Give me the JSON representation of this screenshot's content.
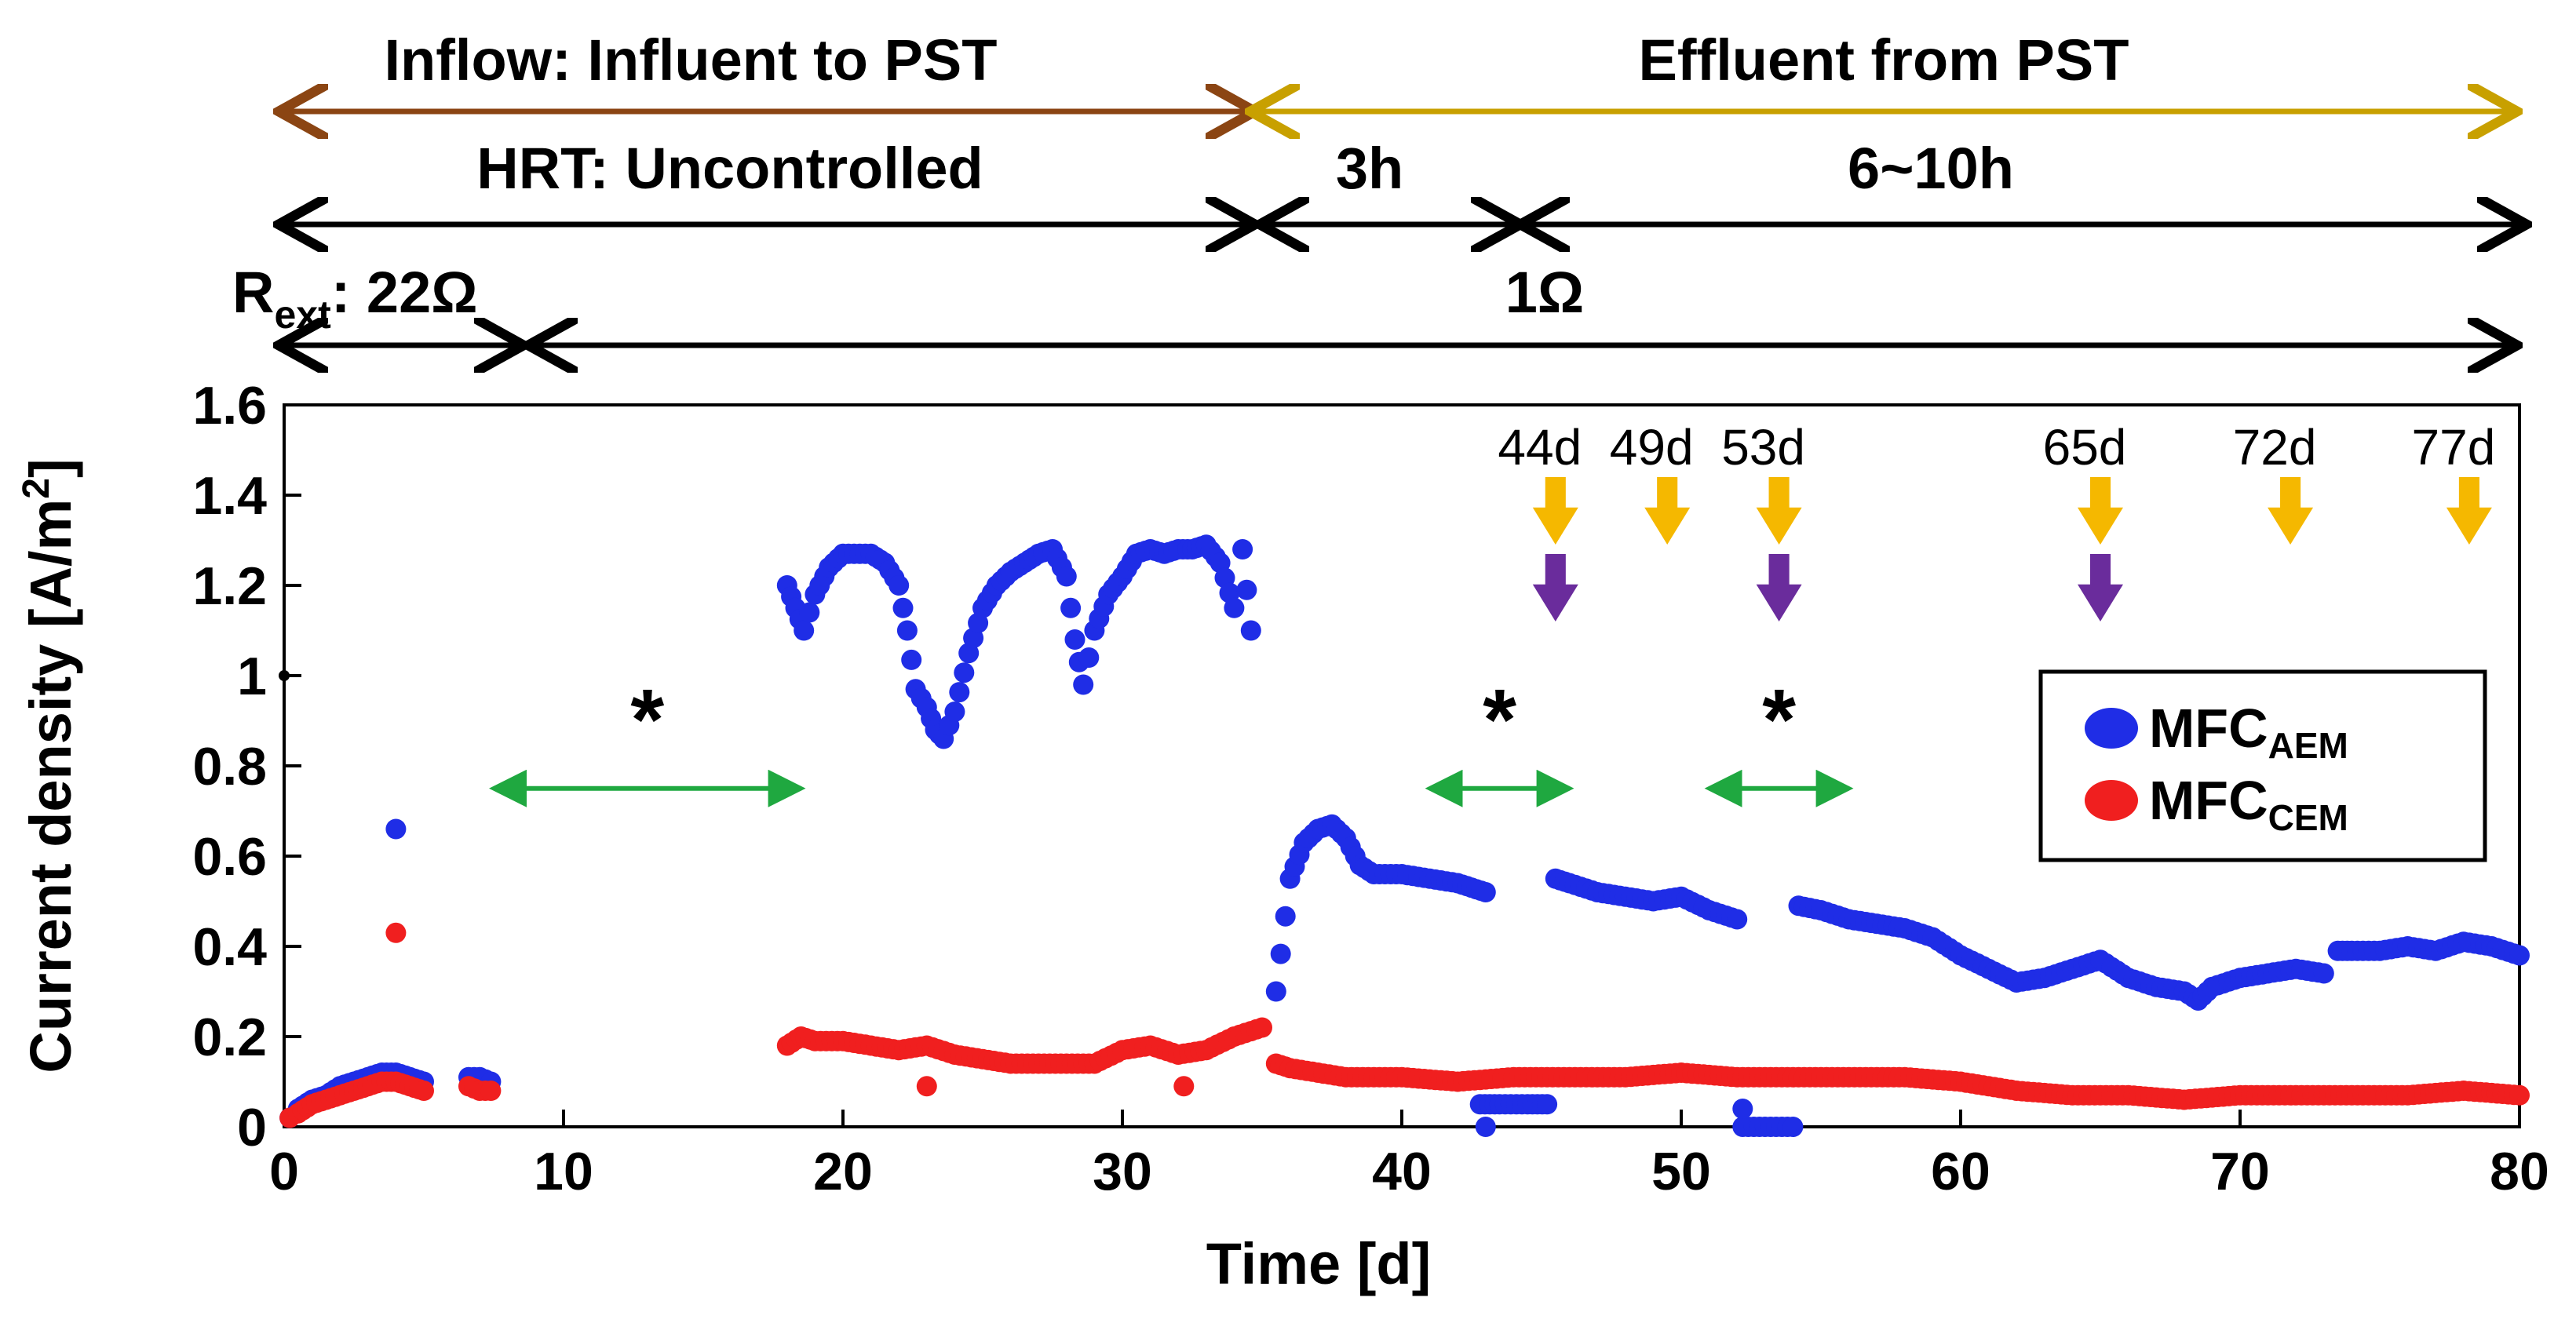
{
  "chart_data": {
    "type": "scatter",
    "title": "",
    "xlabel": "Time [d]",
    "ylabel_main": "Current density [A/m",
    "ylabel_sup": "2",
    "ylabel_end": "]",
    "xlim": [
      0,
      80
    ],
    "ylim": [
      0,
      1.6
    ],
    "xticks": [
      0,
      10,
      20,
      30,
      40,
      50,
      60,
      70,
      80
    ],
    "yticks": [
      0,
      0.2,
      0.4,
      0.6,
      0.8,
      1,
      1.2,
      1.4,
      1.6
    ],
    "ytick_labels": [
      "0",
      "0.2",
      "0.4",
      "0.6",
      "0.8",
      "1",
      "1.2",
      "1.4",
      "1.6"
    ],
    "grid": false,
    "legend_position": "right",
    "series": [
      {
        "name": "MFC",
        "subscript": "AEM",
        "color": "#1f2de6",
        "segments": [
          [
            [
              0.2,
              0.02
            ],
            [
              0.5,
              0.04
            ],
            [
              1.0,
              0.06
            ],
            [
              1.5,
              0.07
            ],
            [
              2.0,
              0.09
            ],
            [
              2.5,
              0.1
            ],
            [
              3.0,
              0.11
            ],
            [
              3.5,
              0.12
            ],
            [
              4.0,
              0.12
            ],
            [
              4.5,
              0.11
            ],
            [
              5.0,
              0.1
            ]
          ],
          [
            [
              4.0,
              0.66
            ]
          ],
          [
            [
              6.6,
              0.11
            ],
            [
              7.0,
              0.11
            ],
            [
              7.4,
              0.1
            ]
          ],
          [
            [
              18.0,
              1.2
            ],
            [
              18.3,
              1.15
            ],
            [
              18.6,
              1.1
            ],
            [
              19.0,
              1.18
            ],
            [
              19.5,
              1.24
            ],
            [
              20.0,
              1.27
            ],
            [
              21.0,
              1.27
            ],
            [
              21.5,
              1.25
            ],
            [
              22.0,
              1.2
            ],
            [
              22.3,
              1.1
            ],
            [
              22.6,
              0.97
            ],
            [
              23.0,
              0.93
            ],
            [
              23.3,
              0.88
            ],
            [
              23.6,
              0.86
            ],
            [
              24.0,
              0.92
            ],
            [
              24.5,
              1.05
            ],
            [
              25.0,
              1.15
            ],
            [
              25.5,
              1.2
            ],
            [
              26.0,
              1.23
            ],
            [
              26.5,
              1.25
            ],
            [
              27.0,
              1.27
            ],
            [
              27.5,
              1.28
            ],
            [
              28.0,
              1.22
            ],
            [
              28.3,
              1.08
            ],
            [
              28.6,
              0.98
            ],
            [
              29.0,
              1.1
            ],
            [
              29.5,
              1.18
            ],
            [
              30.0,
              1.22
            ],
            [
              30.5,
              1.27
            ],
            [
              31.0,
              1.28
            ],
            [
              31.5,
              1.27
            ],
            [
              32.0,
              1.28
            ],
            [
              32.5,
              1.28
            ],
            [
              33.0,
              1.29
            ],
            [
              33.5,
              1.25
            ],
            [
              34.0,
              1.15
            ],
            [
              34.3,
              1.28
            ],
            [
              34.6,
              1.1
            ]
          ],
          [
            [
              35.5,
              0.3
            ],
            [
              36.0,
              0.55
            ],
            [
              36.5,
              0.63
            ],
            [
              37.0,
              0.66
            ],
            [
              37.5,
              0.67
            ],
            [
              38.0,
              0.64
            ],
            [
              38.5,
              0.58
            ],
            [
              39.0,
              0.56
            ],
            [
              40.0,
              0.56
            ],
            [
              41.0,
              0.55
            ],
            [
              42.0,
              0.54
            ],
            [
              42.5,
              0.53
            ],
            [
              43.0,
              0.52
            ]
          ],
          [
            [
              42.8,
              0.05
            ],
            [
              43.5,
              0.05
            ],
            [
              44.5,
              0.05
            ],
            [
              45.2,
              0.05
            ]
          ],
          [
            [
              43.0,
              0.0
            ]
          ],
          [
            [
              45.5,
              0.55
            ],
            [
              46.0,
              0.54
            ],
            [
              47.0,
              0.52
            ],
            [
              48.0,
              0.51
            ],
            [
              49.0,
              0.5
            ],
            [
              50.0,
              0.51
            ],
            [
              51.0,
              0.48
            ],
            [
              52.0,
              0.46
            ]
          ],
          [
            [
              52.2,
              0.04
            ],
            [
              52.2,
              0.0
            ],
            [
              53.0,
              0.0
            ],
            [
              54.0,
              0.0
            ]
          ],
          [
            [
              54.2,
              0.49
            ],
            [
              55.0,
              0.48
            ],
            [
              56.0,
              0.46
            ],
            [
              57.0,
              0.45
            ],
            [
              58.0,
              0.44
            ],
            [
              59.0,
              0.42
            ],
            [
              60.0,
              0.38
            ],
            [
              61.0,
              0.35
            ],
            [
              62.0,
              0.32
            ],
            [
              63.0,
              0.33
            ],
            [
              64.0,
              0.35
            ],
            [
              65.0,
              0.37
            ],
            [
              66.0,
              0.33
            ],
            [
              67.0,
              0.31
            ],
            [
              68.0,
              0.3
            ],
            [
              68.5,
              0.28
            ],
            [
              69.0,
              0.31
            ],
            [
              70.0,
              0.33
            ],
            [
              71.0,
              0.34
            ],
            [
              72.0,
              0.35
            ],
            [
              73.0,
              0.34
            ]
          ],
          [
            [
              73.5,
              0.39
            ],
            [
              74.0,
              0.39
            ],
            [
              75.0,
              0.39
            ],
            [
              76.0,
              0.4
            ],
            [
              77.0,
              0.39
            ],
            [
              78.0,
              0.41
            ],
            [
              79.0,
              0.4
            ],
            [
              80.0,
              0.38
            ]
          ]
        ]
      },
      {
        "name": "MFC",
        "subscript": "CEM",
        "color": "#f01f1f",
        "segments": [
          [
            [
              0.2,
              0.02
            ],
            [
              0.5,
              0.03
            ],
            [
              1.0,
              0.05
            ],
            [
              1.5,
              0.06
            ],
            [
              2.0,
              0.07
            ],
            [
              2.5,
              0.08
            ],
            [
              3.0,
              0.09
            ],
            [
              3.5,
              0.1
            ],
            [
              4.0,
              0.1
            ],
            [
              4.5,
              0.09
            ],
            [
              5.0,
              0.08
            ]
          ],
          [
            [
              4.0,
              0.43
            ]
          ],
          [
            [
              6.6,
              0.09
            ],
            [
              7.0,
              0.08
            ],
            [
              7.4,
              0.08
            ]
          ],
          [
            [
              18.0,
              0.18
            ],
            [
              18.5,
              0.2
            ],
            [
              19.0,
              0.19
            ],
            [
              20.0,
              0.19
            ],
            [
              21.0,
              0.18
            ],
            [
              22.0,
              0.17
            ],
            [
              23.0,
              0.18
            ],
            [
              24.0,
              0.16
            ],
            [
              25.0,
              0.15
            ],
            [
              26.0,
              0.14
            ],
            [
              27.0,
              0.14
            ],
            [
              28.0,
              0.14
            ],
            [
              29.0,
              0.14
            ],
            [
              30.0,
              0.17
            ],
            [
              31.0,
              0.18
            ],
            [
              32.0,
              0.16
            ],
            [
              33.0,
              0.17
            ],
            [
              34.0,
              0.2
            ],
            [
              35.0,
              0.22
            ]
          ],
          [
            [
              23.0,
              0.09
            ]
          ],
          [
            [
              32.2,
              0.09
            ]
          ],
          [
            [
              35.5,
              0.14
            ],
            [
              36.0,
              0.13
            ],
            [
              37.0,
              0.12
            ],
            [
              38.0,
              0.11
            ],
            [
              40.0,
              0.11
            ],
            [
              42.0,
              0.1
            ],
            [
              44.0,
              0.11
            ],
            [
              46.0,
              0.11
            ],
            [
              48.0,
              0.11
            ],
            [
              50.0,
              0.12
            ],
            [
              52.0,
              0.11
            ],
            [
              54.0,
              0.11
            ],
            [
              56.0,
              0.11
            ],
            [
              58.0,
              0.11
            ],
            [
              60.0,
              0.1
            ],
            [
              62.0,
              0.08
            ],
            [
              64.0,
              0.07
            ],
            [
              66.0,
              0.07
            ],
            [
              68.0,
              0.06
            ],
            [
              70.0,
              0.07
            ],
            [
              72.0,
              0.07
            ],
            [
              74.0,
              0.07
            ],
            [
              76.0,
              0.07
            ],
            [
              78.0,
              0.08
            ],
            [
              80.0,
              0.07
            ]
          ]
        ]
      }
    ],
    "annotations": {
      "phase_inflow": {
        "label": "Inflow: Influent to PST",
        "from": 0,
        "to": 35,
        "color": "#8b4513"
      },
      "phase_effluent": {
        "label": "Effluent  from PST",
        "from": 35,
        "to": 80,
        "color": "#c8a000"
      },
      "hrt_uncontrolled": {
        "label": "HRT: Uncontrolled",
        "from": 0,
        "to": 35
      },
      "hrt_3h": {
        "label": "3h",
        "from": 35,
        "to": 44.5
      },
      "hrt_6_10h": {
        "label": "6~10h",
        "from": 44.5,
        "to": 80
      },
      "rext_22": {
        "label_main": "R",
        "label_sub": "ext",
        "label_value": ": 22Ω",
        "from": 0,
        "to": 9
      },
      "rext_1": {
        "label": "1Ω",
        "from": 9,
        "to": 80
      },
      "stars": [
        {
          "label": "*",
          "from": 7.5,
          "to": 18.5,
          "y": 0.75
        },
        {
          "label": "*",
          "from": 41,
          "to": 46,
          "y": 0.75
        },
        {
          "label": "*",
          "from": 51,
          "to": 56,
          "y": 0.75
        }
      ],
      "marker_days": [
        {
          "label": "44d",
          "day": 45.5,
          "purple": true
        },
        {
          "label": "49d",
          "day": 49.5,
          "purple": false
        },
        {
          "label": "53d",
          "day": 53.5,
          "purple": true
        },
        {
          "label": "65d",
          "day": 65.0,
          "purple": true
        },
        {
          "label": "72d",
          "day": 71.8,
          "purple": false
        },
        {
          "label": "77d",
          "day": 78.2,
          "purple": false
        }
      ],
      "arrow_colors": {
        "yellow": "#f5b800",
        "purple": "#6a2c9c",
        "green": "#1fa840",
        "black": "#000000"
      }
    }
  }
}
